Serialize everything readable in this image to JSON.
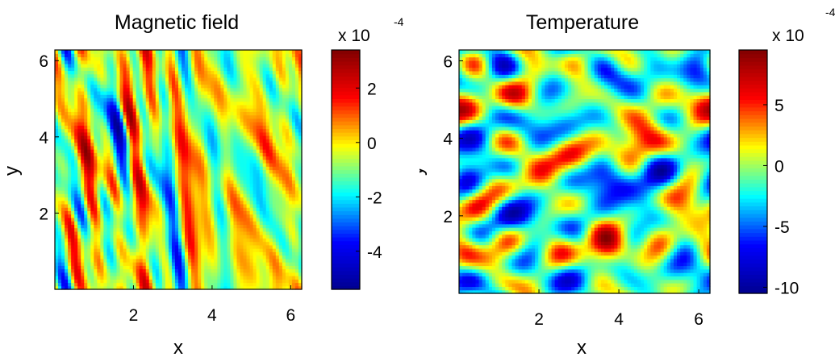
{
  "chart_data": [
    {
      "type": "heatmap",
      "title": "Magnetic field",
      "xlabel": "x",
      "ylabel": "y",
      "xlim": [
        0,
        6.28
      ],
      "ylim": [
        0,
        6.28
      ],
      "x_ticks": [
        "2",
        "4",
        "6"
      ],
      "y_ticks": [
        "2",
        "4",
        "6"
      ],
      "colorbar": {
        "multiplier": "x 10",
        "exponent": "-4",
        "range": [
          -5.4,
          3.4
        ],
        "ticks": [
          "2",
          "0",
          "-2",
          "-4"
        ],
        "tick_values": [
          2,
          0,
          -2,
          -4
        ]
      },
      "colormap": [
        "#00008f",
        "#0000ff",
        "#00ffff",
        "#ffff00",
        "#ff0000",
        "#800000"
      ],
      "pattern": "vertical-streaks",
      "seed": 7,
      "grid": false
    },
    {
      "type": "heatmap",
      "title": "Temperature",
      "xlabel": "x",
      "ylabel": "y",
      "xlim": [
        0,
        6.28
      ],
      "ylim": [
        0,
        6.28
      ],
      "x_ticks": [
        "2",
        "4",
        "6"
      ],
      "y_ticks": [
        "2",
        "4",
        "6"
      ],
      "colorbar": {
        "multiplier": "x 10",
        "exponent": "-4",
        "range": [
          -10.5,
          9.5
        ],
        "ticks": [
          "5",
          "0",
          "-5",
          "-10"
        ],
        "tick_values": [
          5,
          0,
          -5,
          -10
        ]
      },
      "colormap": [
        "#00008f",
        "#0000ff",
        "#00ffff",
        "#ffff00",
        "#ff0000",
        "#800000"
      ],
      "pattern": "isotropic-blobs",
      "seed": 31,
      "grid": false
    }
  ]
}
